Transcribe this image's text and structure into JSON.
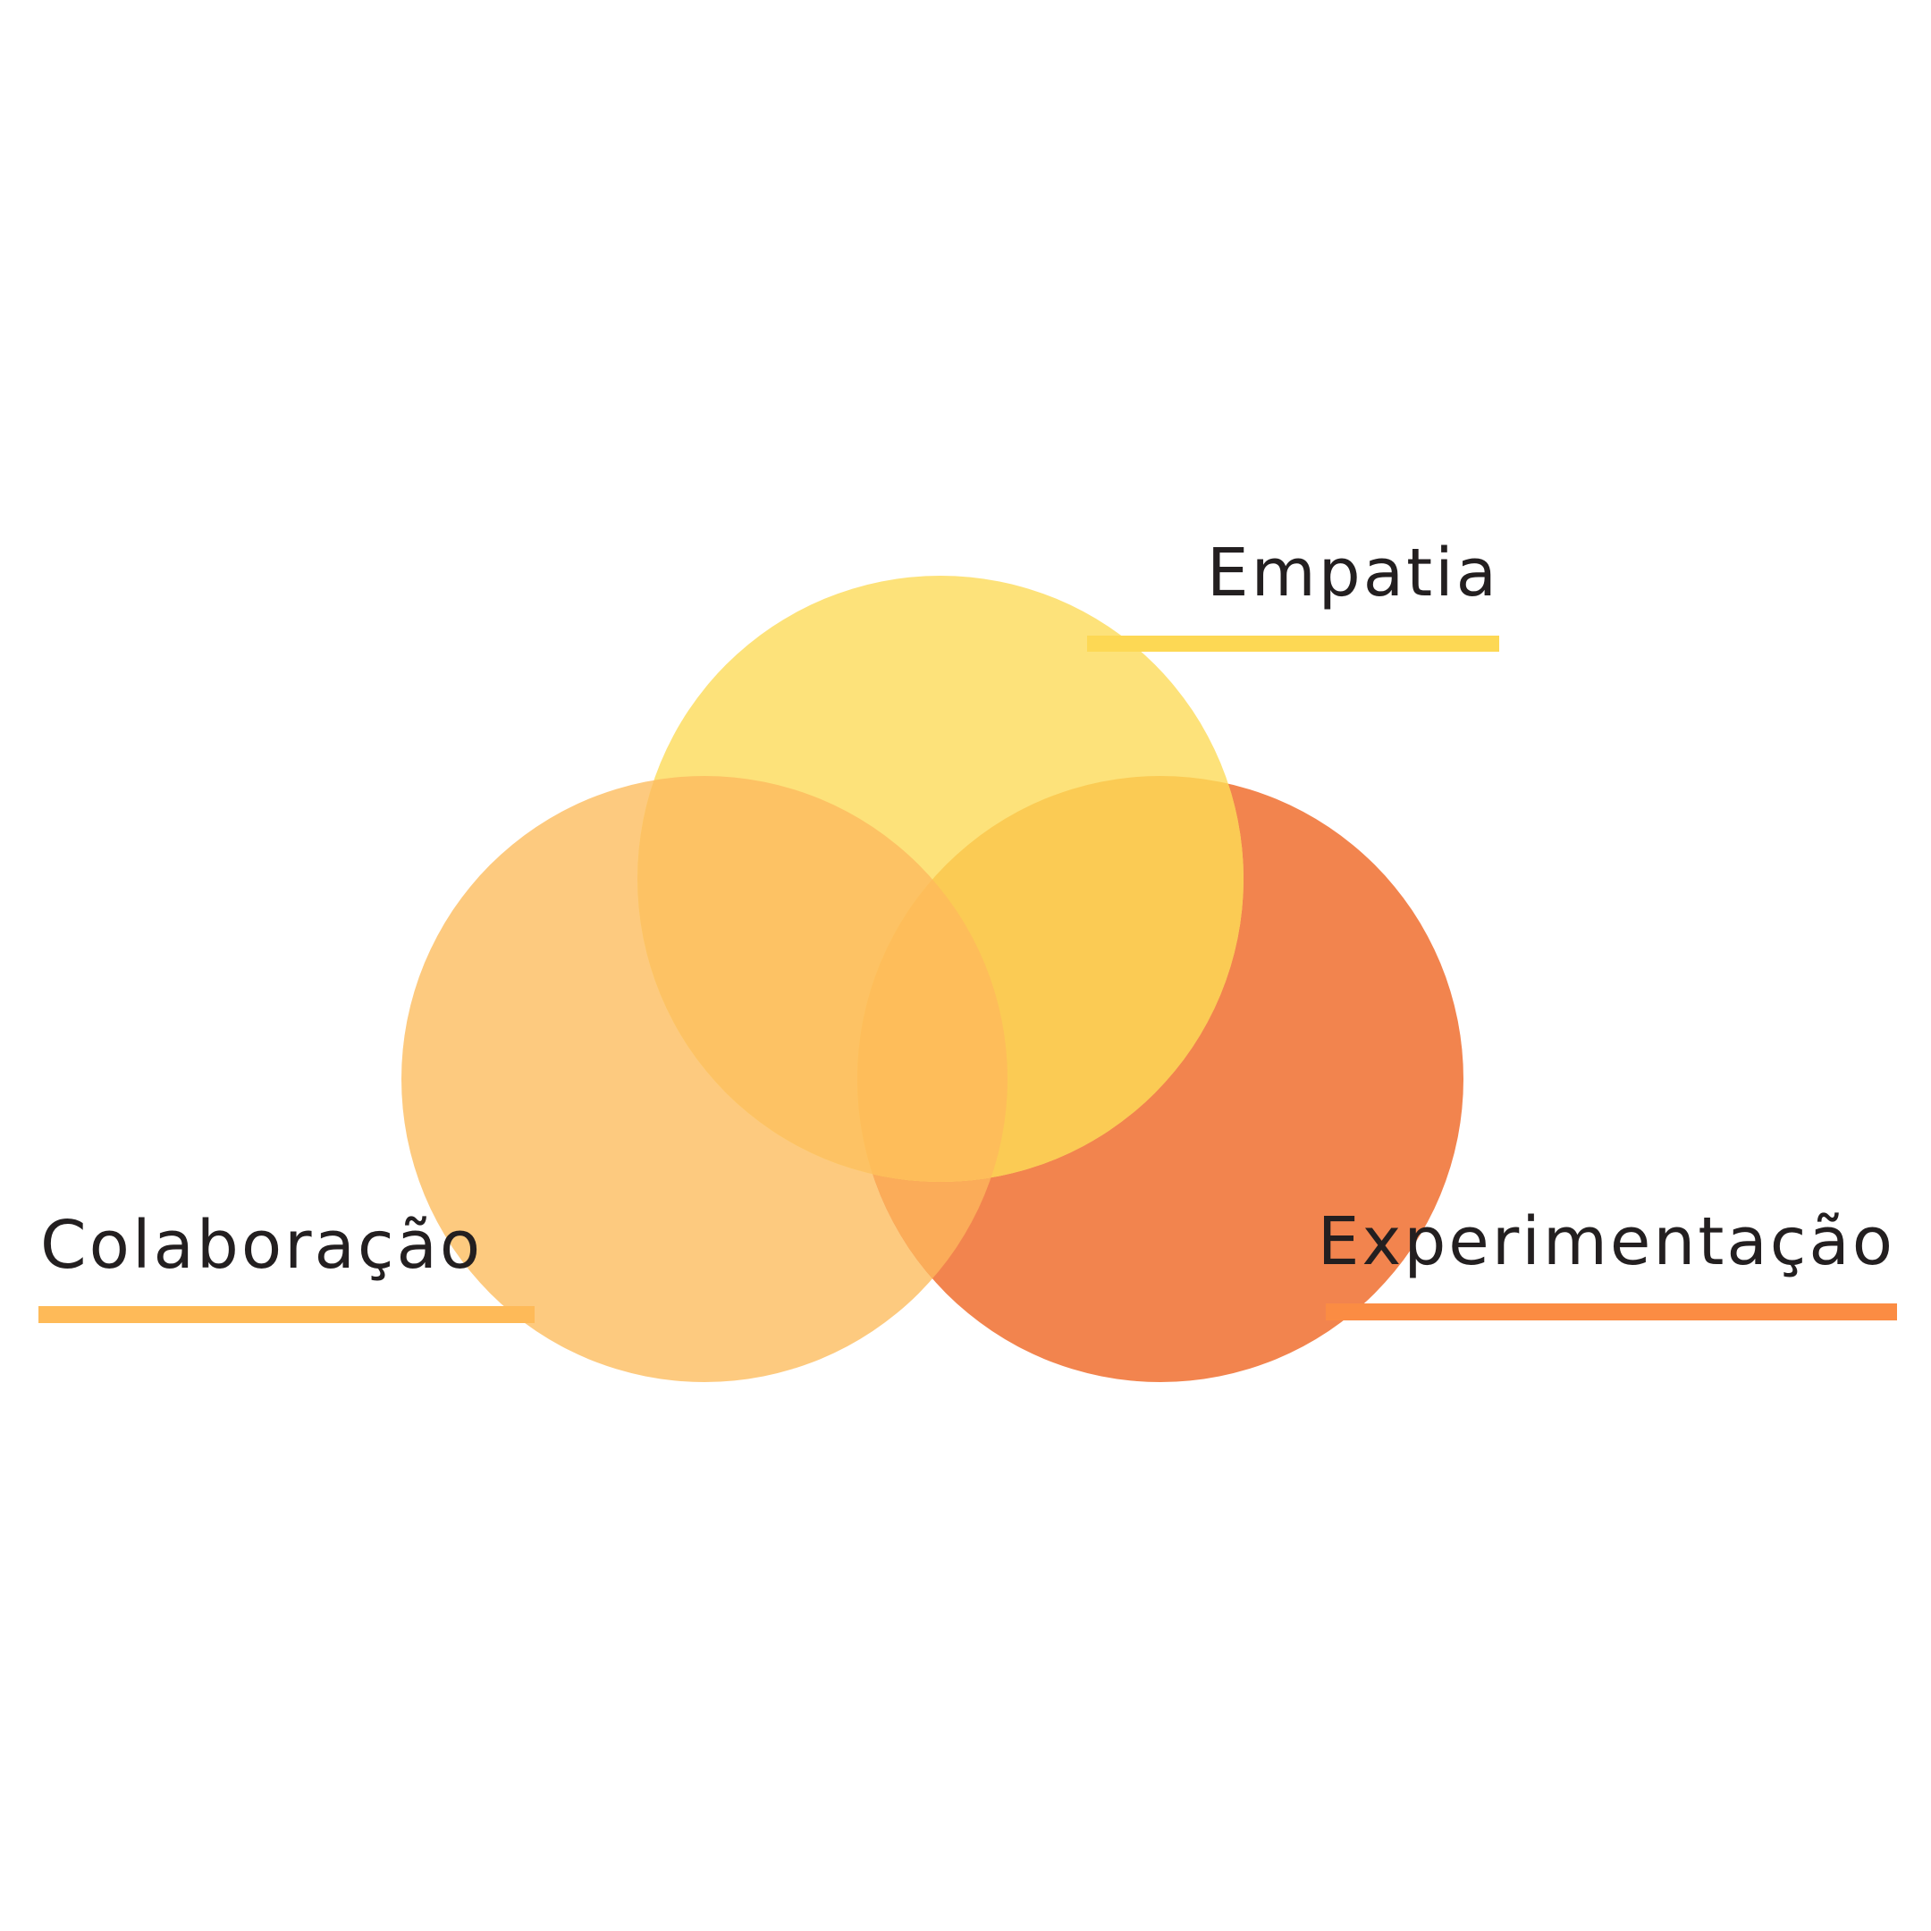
{
  "diagram": {
    "type": "venn",
    "sets": [
      {
        "id": "empatia",
        "label": "Empatia",
        "color": "#fde27a",
        "line_color": "#fdd854"
      },
      {
        "id": "colaboracao",
        "label": "Colaboração",
        "color": "#fdca7f",
        "line_color": "#feba58"
      },
      {
        "id": "experimentacao",
        "label": "Experimentação",
        "color": "#f2844e",
        "line_color": "#fb8c43"
      }
    ],
    "overlap_colors": {
      "empatia_colaboracao": "#fdc264",
      "empatia_experimentacao": "#fbcb54",
      "colaboracao_experimentacao": "#fbac59",
      "all": "#febd5a"
    }
  }
}
